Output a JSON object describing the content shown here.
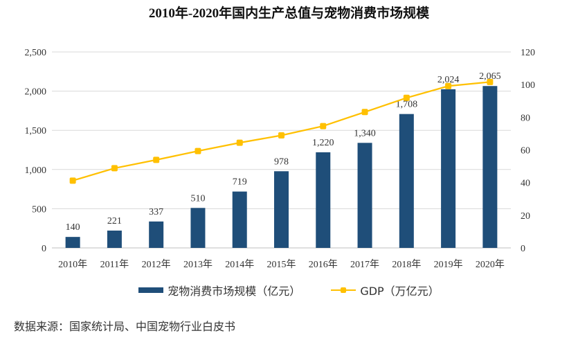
{
  "chart_data": {
    "type": "bar",
    "title": "2010年-2020年国内生产总值与宠物消费市场规模",
    "categories": [
      "2010年",
      "2011年",
      "2012年",
      "2013年",
      "2014年",
      "2015年",
      "2016年",
      "2017年",
      "2018年",
      "2019年",
      "2020年"
    ],
    "series": [
      {
        "name": "宠物消费市场规模（亿元）",
        "type": "bar",
        "axis": "left",
        "color": "#1f4e79",
        "values": [
          140,
          221,
          337,
          510,
          719,
          978,
          1220,
          1340,
          1708,
          2024,
          2065
        ],
        "labels": [
          "140",
          "221",
          "337",
          "510",
          "719",
          "978",
          "1,220",
          "1,340",
          "1,708",
          "2,024",
          "2,065"
        ]
      },
      {
        "name": "GDP（万亿元）",
        "type": "line",
        "axis": "right",
        "color": "#ffc000",
        "values": [
          41.2,
          48.8,
          53.9,
          59.3,
          64.4,
          68.9,
          74.6,
          83.2,
          91.9,
          99.1,
          101.6
        ]
      }
    ],
    "left_axis": {
      "ylim": [
        0,
        2500
      ],
      "ticks": [
        0,
        500,
        1000,
        1500,
        2000,
        2500
      ],
      "tick_labels": [
        "0",
        "500",
        "1,000",
        "1,500",
        "2,000",
        "2,500"
      ]
    },
    "right_axis": {
      "ylim": [
        0,
        120
      ],
      "ticks": [
        0,
        20,
        40,
        60,
        80,
        100,
        120
      ],
      "tick_labels": [
        "0",
        "20",
        "40",
        "60",
        "80",
        "100",
        "120"
      ]
    },
    "grid": true,
    "legend_position": "bottom",
    "xlabel": "",
    "ylabel": ""
  },
  "source": "数据来源：国家统计局、中国宠物行业白皮书"
}
